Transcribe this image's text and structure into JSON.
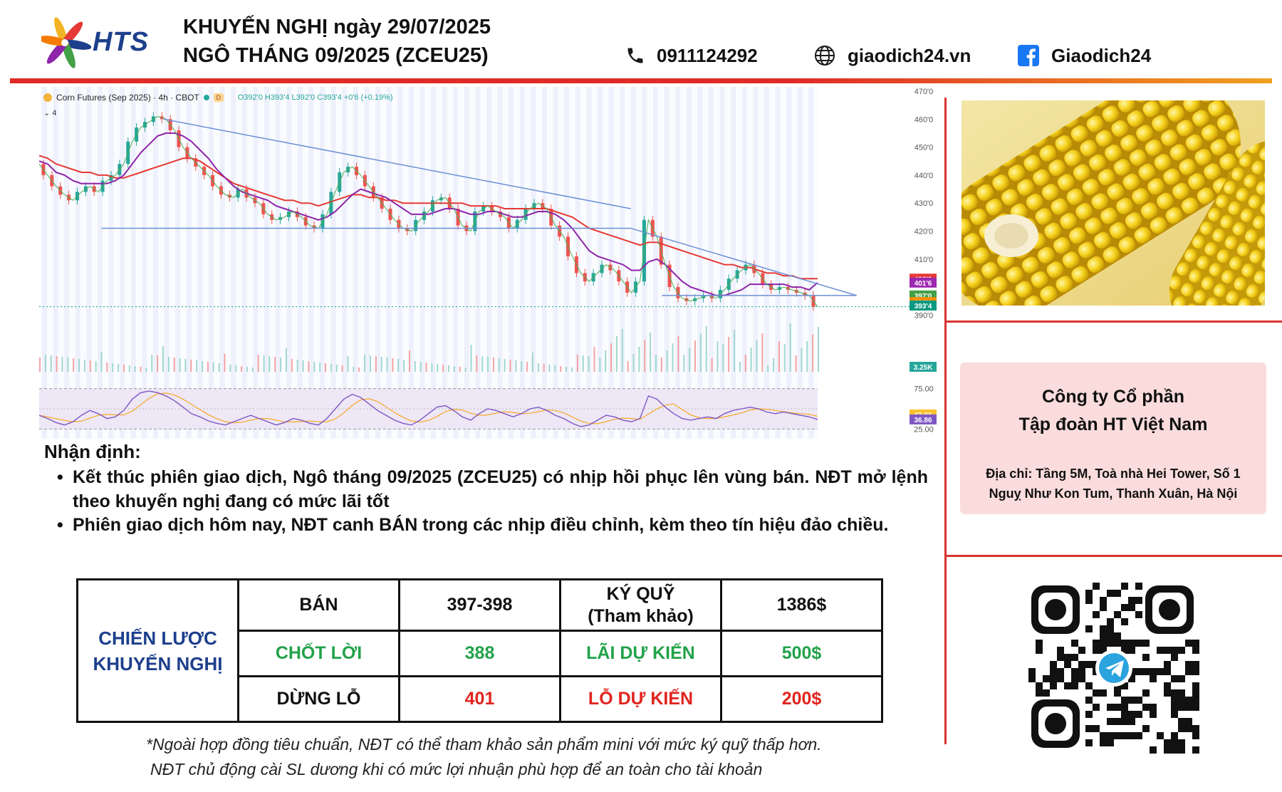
{
  "header": {
    "brand": "HTS",
    "title_line1": "KHUYẾN NGHỊ ngày 29/07/2025",
    "title_line2": "NGÔ THÁNG 09/2025 (ZCEU25)",
    "phone": "0911124292",
    "website": "giaodich24.vn",
    "facebook": "Giaodich24",
    "icons": {
      "phone": "phone-icon",
      "web": "globe-icon",
      "facebook": "facebook-icon"
    },
    "colors": {
      "brand_blue": "#1d3f8c",
      "accent_red": "#e02a27",
      "accent_orange": "#f0a020"
    }
  },
  "chart_data": {
    "type": "line",
    "legend": {
      "symbol": "Corn Futures (Sep 2025) · 4h · CBOT",
      "ohlc": "O392'0 H393'4 L392'0 C393'4 +0'6 (+0.19%)",
      "collapse": "4",
      "d_badge": "D"
    },
    "ylim": [
      385,
      470
    ],
    "y_ticks": [
      {
        "v": 470,
        "l": "470'0"
      },
      {
        "v": 460,
        "l": "460'0"
      },
      {
        "v": 450,
        "l": "450'0"
      },
      {
        "v": 440,
        "l": "440'0"
      },
      {
        "v": 430,
        "l": "430'0"
      },
      {
        "v": 420,
        "l": "420'0"
      },
      {
        "v": 410,
        "l": "410'0"
      },
      {
        "v": 390,
        "l": "390'0"
      }
    ],
    "price_labels": [
      {
        "v": 403.0,
        "l": "403'0",
        "color": "#e53935"
      },
      {
        "v": 401.6,
        "l": "401'6",
        "color": "#9c27b0"
      },
      {
        "v": 397.0,
        "l": "397'0",
        "color": "#43a047"
      },
      {
        "v": 394.6,
        "l": "394'6",
        "color": "#fb8c00"
      },
      {
        "v": 393.4,
        "l": "393'4",
        "color": "#089981"
      }
    ],
    "series": [
      {
        "name": "Price",
        "color": "#26a69a",
        "values": [
          444,
          440,
          436,
          433,
          431,
          434,
          436,
          434,
          438,
          440,
          444,
          452,
          457,
          459,
          461,
          460,
          456,
          450,
          446,
          443,
          440,
          436,
          433,
          432,
          435,
          432,
          430,
          426,
          424,
          425,
          427,
          425,
          422,
          421,
          426,
          434,
          441,
          443,
          440,
          436,
          432,
          428,
          424,
          421,
          420,
          424,
          427,
          431,
          432,
          428,
          422,
          420,
          427,
          429,
          427,
          425,
          421,
          424,
          428,
          430,
          428,
          422,
          418,
          411,
          405,
          402,
          405,
          408,
          406,
          402,
          398,
          402,
          424,
          418,
          408,
          400,
          396,
          395,
          396,
          397,
          396,
          399,
          403,
          406,
          408,
          405,
          401,
          399,
          400,
          399,
          398,
          397,
          393
        ]
      },
      {
        "name": "MA",
        "color": "#e53935",
        "values": [
          447,
          446,
          444,
          443,
          442,
          441,
          441,
          440,
          440,
          439,
          439,
          440,
          441,
          442,
          443,
          444,
          445,
          446,
          446,
          445,
          443,
          441,
          439,
          437,
          436,
          435,
          434,
          433,
          432,
          431,
          431,
          430,
          430,
          429,
          430,
          431,
          432,
          433,
          433,
          432,
          432,
          431,
          431,
          430,
          430,
          430,
          430,
          430,
          430,
          430,
          430,
          429,
          429,
          429,
          429,
          428,
          428,
          428,
          428,
          428,
          428,
          427,
          426,
          425,
          423,
          421,
          420,
          419,
          418,
          417,
          416,
          415,
          416,
          416,
          415,
          414,
          413,
          412,
          411,
          410,
          409,
          408,
          408,
          407,
          407,
          406,
          405,
          405,
          404,
          404,
          403,
          403,
          403
        ]
      },
      {
        "name": "MA2",
        "color": "#8e24aa",
        "values": [
          445,
          444,
          441,
          440,
          438,
          437,
          437,
          437,
          437,
          438,
          440,
          444,
          448,
          451,
          454,
          455,
          455,
          454,
          452,
          449,
          446,
          442,
          439,
          436,
          434,
          433,
          432,
          431,
          429,
          428,
          427,
          426,
          425,
          424,
          425,
          427,
          430,
          433,
          435,
          434,
          433,
          432,
          430,
          428,
          426,
          426,
          426,
          427,
          428,
          428,
          427,
          426,
          426,
          427,
          427,
          426,
          425,
          425,
          426,
          427,
          427,
          426,
          424,
          421,
          417,
          413,
          411,
          410,
          409,
          408,
          406,
          406,
          409,
          410,
          408,
          405,
          402,
          400,
          399,
          398,
          397,
          397,
          398,
          399,
          401,
          401,
          401,
          401,
          401,
          400,
          400,
          399,
          401.6
        ]
      }
    ],
    "trendlines": [
      {
        "name": "Downtrend",
        "from": [
          0.16,
          460
        ],
        "to": [
          0.76,
          428
        ]
      },
      {
        "name": "Downtrend",
        "from": [
          0.76,
          421
        ],
        "to": [
          1.05,
          397
        ]
      },
      {
        "name": "Support",
        "from": [
          0.08,
          421
        ],
        "to": [
          0.76,
          421
        ]
      },
      {
        "name": "Support",
        "from": [
          0.8,
          397
        ],
        "to": [
          1.05,
          397
        ]
      }
    ],
    "volume_label": "3.25K",
    "oscillator": {
      "ylim": [
        20,
        80
      ],
      "ticks": [
        "75.00",
        "25.00"
      ],
      "labels": [
        {
          "v": 43.01,
          "l": "43.01",
          "color": "#fbc02d"
        },
        {
          "v": 36.86,
          "l": "36.86",
          "color": "#7e57c2"
        }
      ],
      "values": [
        42,
        38,
        33,
        30,
        34,
        42,
        48,
        44,
        38,
        40,
        48,
        62,
        70,
        72,
        70,
        66,
        60,
        52,
        44,
        40,
        35,
        32,
        30,
        34,
        38,
        42,
        38,
        34,
        30,
        33,
        38,
        36,
        32,
        30,
        38,
        50,
        62,
        68,
        64,
        56,
        48,
        42,
        36,
        32,
        30,
        36,
        44,
        52,
        54,
        48,
        40,
        36,
        44,
        50,
        48,
        44,
        40,
        44,
        50,
        52,
        48,
        42,
        38,
        32,
        28,
        30,
        36,
        42,
        40,
        36,
        34,
        38,
        66,
        62,
        52,
        44,
        38,
        36,
        38,
        40,
        38,
        44,
        48,
        50,
        52,
        50,
        46,
        44,
        46,
        44,
        42,
        40,
        36.86
      ]
    }
  },
  "analysis": {
    "title": "Nhận định:",
    "bullets": [
      "Kết thúc phiên giao dịch, Ngô tháng 09/2025 (ZCEU25) có nhịp hồi phục lên vùng bán. NĐT mở lệnh theo khuyến nghị đang có mức lãi tốt",
      "Phiên giao dịch hôm nay, NĐT canh BÁN trong các nhịp điều chỉnh, kèm theo tín hiệu đảo chiều."
    ]
  },
  "strategy": {
    "label_line1": "CHIẾN LƯỢC",
    "label_line2": "KHUYẾN NGHỊ",
    "row1": {
      "action": "BÁN",
      "price": "397-398",
      "margin_label_1": "KÝ QUỸ",
      "margin_label_2": "(Tham khảo)",
      "margin_value": "1386$"
    },
    "row2": {
      "tp_label": "CHỐT LỜI",
      "tp_value": "388",
      "profit_label": "LÃI DỰ KIẾN",
      "profit_value": "500$"
    },
    "row3": {
      "sl_label": "DỪNG LỖ",
      "sl_value": "401",
      "loss_label": "LỖ DỰ KIẾN",
      "loss_value": "200$"
    }
  },
  "notes": [
    "*Ngoài hợp đồng tiêu chuẩn, NĐT có thể tham khảo sản phẩm mini với mức ký quỹ thấp hơn.",
    "NĐT chủ động cài SL dương khi có mức lợi nhuận phù hợp để an toàn cho tài khoản"
  ],
  "company": {
    "name_line1": "Công ty Cổ phần",
    "name_line2": "Tập đoàn HT Việt Nam",
    "address_line1": "Địa chỉ: Tầng 5M, Toà nhà Hei Tower, Số 1",
    "address_line2": "Nguỵ Như Kon Tum, Thanh Xuân, Hà Nội"
  },
  "qr": {
    "icon": "telegram-icon"
  }
}
